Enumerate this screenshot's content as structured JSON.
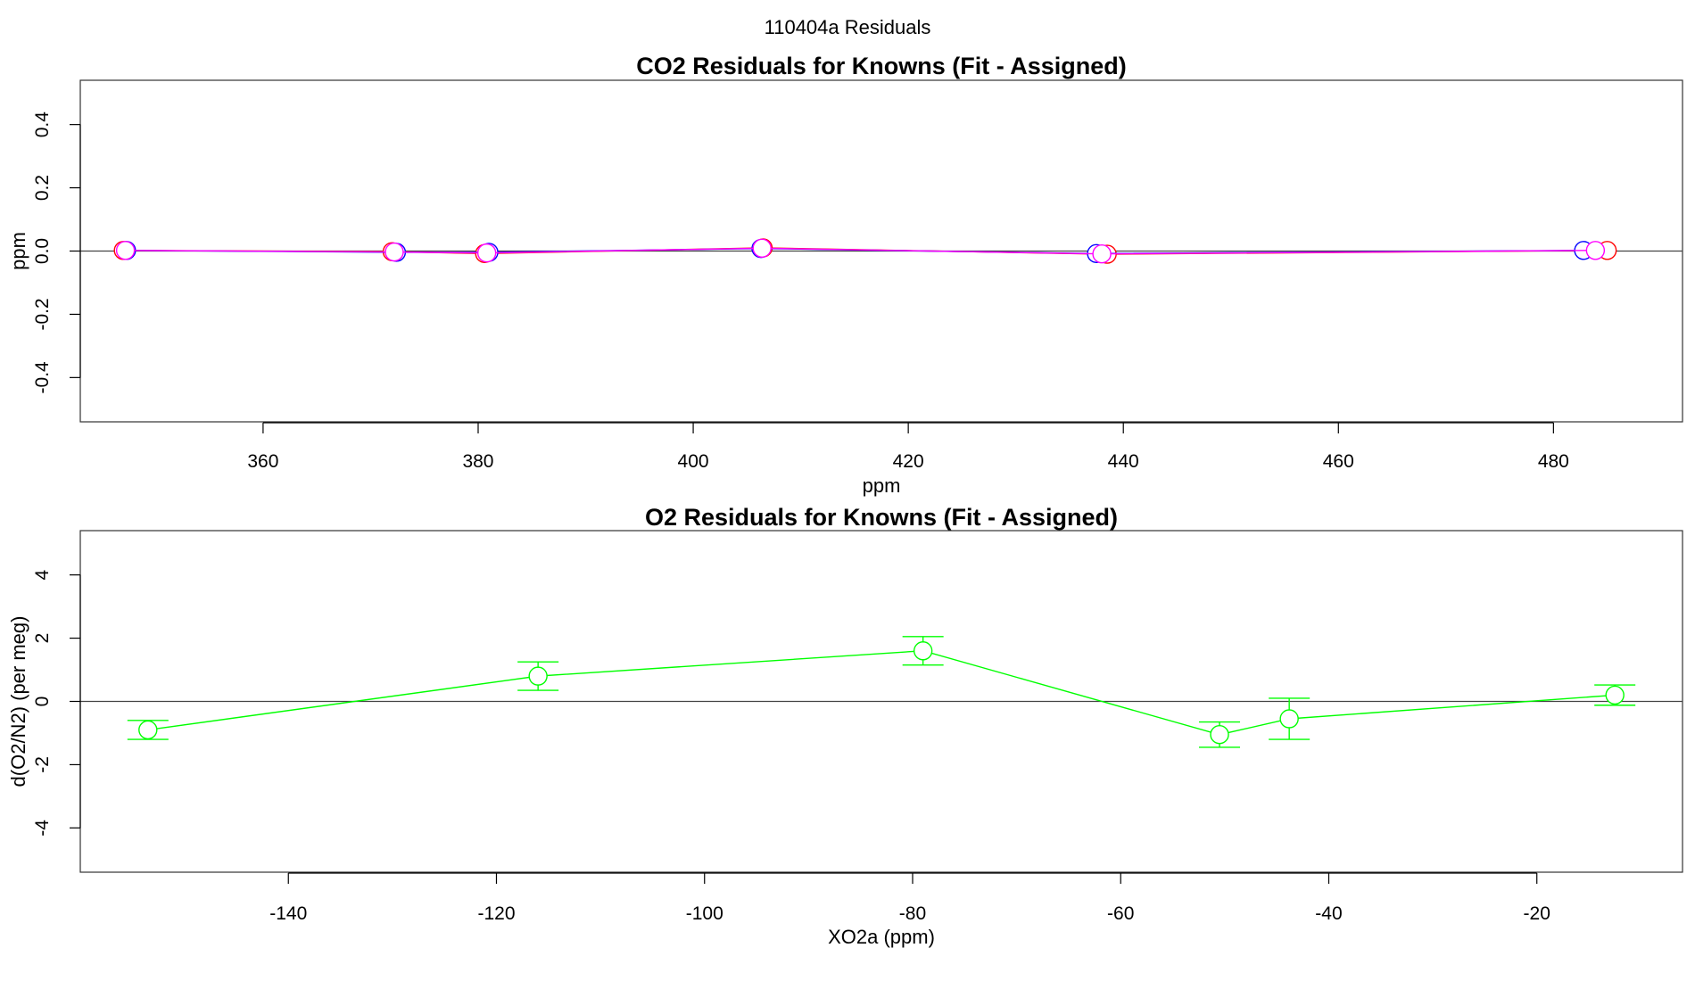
{
  "figure_title": "110404a  Residuals",
  "chart_data": [
    {
      "type": "scatter",
      "title": "CO2 Residuals for Knowns (Fit - Assigned)",
      "xlabel": "ppm",
      "ylabel": "ppm",
      "xlim": [
        343,
        492
      ],
      "ylim": [
        -0.54,
        0.54
      ],
      "xticks": [
        360,
        380,
        400,
        420,
        440,
        460,
        480
      ],
      "yticks": [
        -0.4,
        -0.2,
        0.0,
        0.2,
        0.4
      ],
      "ytick_labels": [
        "-0.4",
        "-0.2",
        "0.0",
        "0.2",
        "0.4"
      ],
      "reference_line_y": 0,
      "series": [
        {
          "name": "red",
          "color": "#ff0000",
          "points": [
            {
              "x": 347.0,
              "y": 0.002
            },
            {
              "x": 372.0,
              "y": -0.002
            },
            {
              "x": 380.6,
              "y": -0.008
            },
            {
              "x": 406.5,
              "y": 0.01
            },
            {
              "x": 438.5,
              "y": -0.01
            },
            {
              "x": 485.0,
              "y": 0.002
            }
          ]
        },
        {
          "name": "blue",
          "color": "#0000ff",
          "points": [
            {
              "x": 347.3,
              "y": 0.002
            },
            {
              "x": 372.4,
              "y": -0.004
            },
            {
              "x": 381.0,
              "y": -0.004
            },
            {
              "x": 406.3,
              "y": 0.008
            },
            {
              "x": 437.5,
              "y": -0.008
            },
            {
              "x": 482.8,
              "y": 0.002
            }
          ]
        },
        {
          "name": "magenta",
          "color": "#ff00ff",
          "points": [
            {
              "x": 347.2,
              "y": 0.002
            },
            {
              "x": 372.2,
              "y": -0.003
            },
            {
              "x": 380.8,
              "y": -0.006
            },
            {
              "x": 406.4,
              "y": 0.009
            },
            {
              "x": 438.0,
              "y": -0.009
            },
            {
              "x": 483.9,
              "y": 0.002
            }
          ]
        }
      ]
    },
    {
      "type": "scatter",
      "title": "O2 Residuals for Knowns (Fit - Assigned)",
      "xlabel": "XO2a (ppm)",
      "ylabel": "d(O2/N2) (per meg)",
      "xlim": [
        -160,
        -6
      ],
      "ylim": [
        -5.4,
        5.4
      ],
      "xticks": [
        -140,
        -120,
        -100,
        -80,
        -60,
        -40,
        -20
      ],
      "yticks": [
        -4,
        -2,
        0,
        2,
        4
      ],
      "ytick_labels": [
        "-4",
        "-2",
        "0",
        "2",
        "4"
      ],
      "reference_line_y": 0,
      "series": [
        {
          "name": "green",
          "color": "#00ff00",
          "points": [
            {
              "x": -153.5,
              "y": -0.9,
              "err": 0.3
            },
            {
              "x": -116.0,
              "y": 0.8,
              "err": 0.45
            },
            {
              "x": -79.0,
              "y": 1.6,
              "err": 0.45
            },
            {
              "x": -50.5,
              "y": -1.05,
              "err": 0.4
            },
            {
              "x": -43.8,
              "y": -0.55,
              "err": 0.65
            },
            {
              "x": -12.5,
              "y": 0.2,
              "err": 0.32
            }
          ]
        }
      ]
    }
  ]
}
